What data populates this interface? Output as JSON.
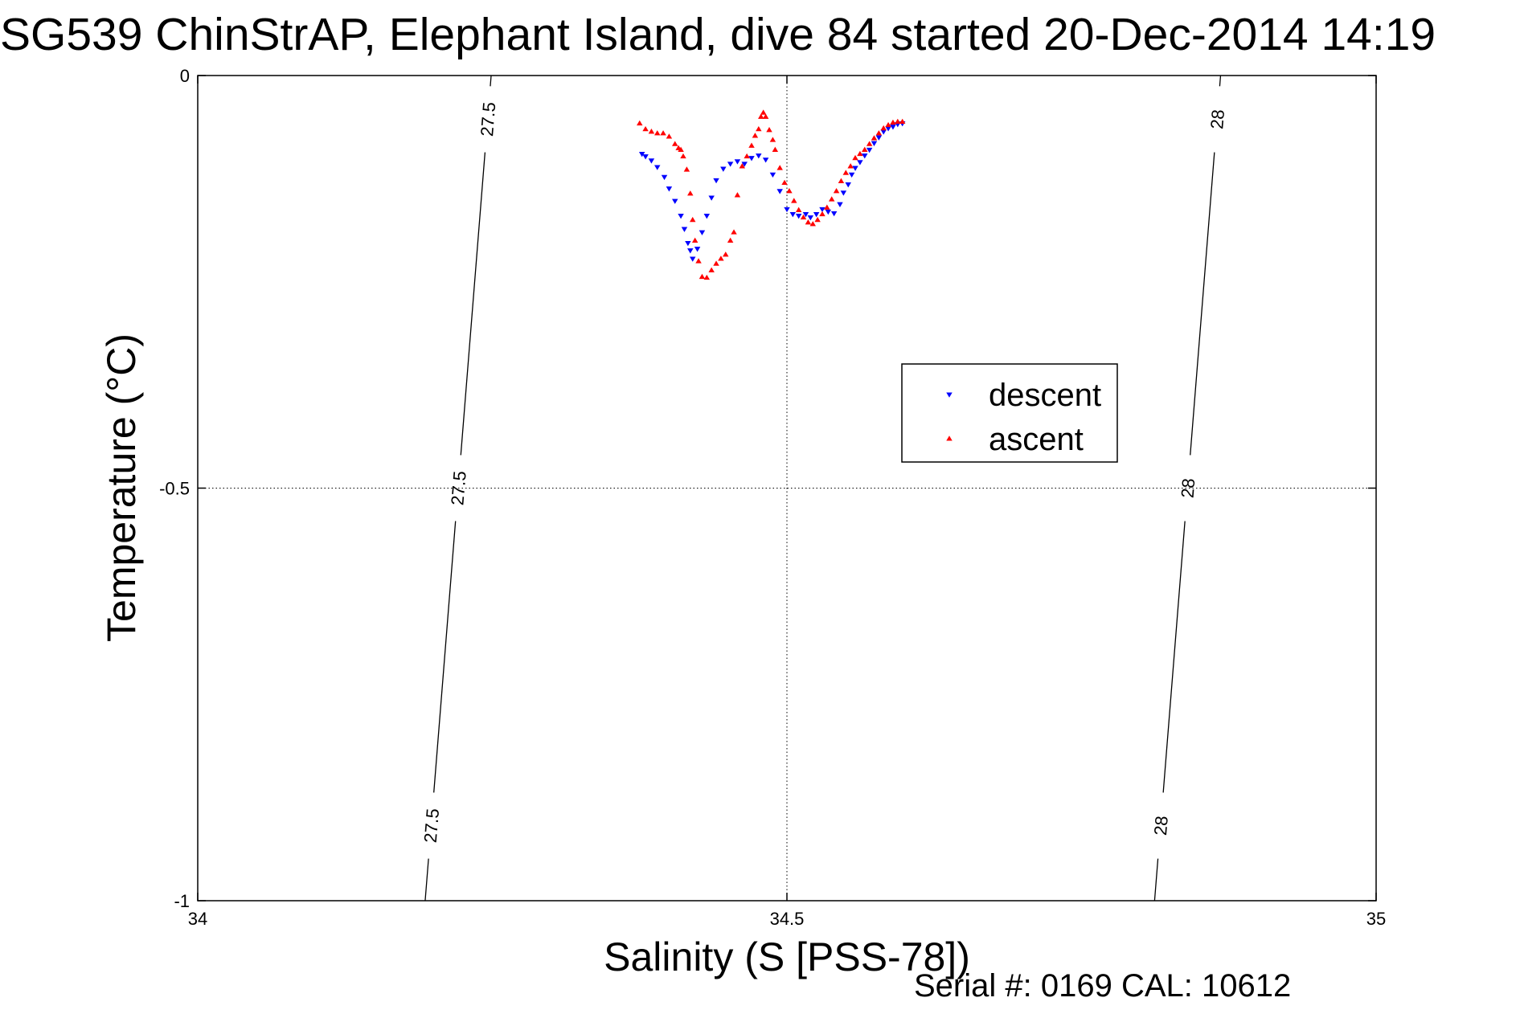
{
  "chart_data": {
    "type": "scatter",
    "title": "SG539 ChinStrAP, Elephant Island, dive 84 started 20-Dec-2014 14:19",
    "xlabel": "Salinity (S [PSS-78])",
    "ylabel": "Temperature (°C)",
    "xlim": [
      34,
      35
    ],
    "ylim": [
      -1,
      0
    ],
    "x_ticks": [
      "34",
      "34.5",
      "35"
    ],
    "y_ticks": [
      "0",
      "-0.5",
      "-1"
    ],
    "grid": true,
    "legend_placement": "center-right",
    "footer": "Serial #: 0169 CAL: 10612",
    "density_contours": [
      {
        "level": "27.5",
        "labels": [
          "27.5",
          "27.5",
          "27.5"
        ],
        "points": [
          [
            34.249,
            0.0
          ],
          [
            34.193,
            -1.0
          ]
        ]
      },
      {
        "level": "28",
        "labels": [
          "28",
          "28",
          "28"
        ],
        "points": [
          [
            34.868,
            0.0
          ],
          [
            34.812,
            -1.0
          ]
        ]
      }
    ],
    "series": [
      {
        "name": "descent",
        "color": "#0000ff",
        "marker": "triangle-down",
        "x": [
          34.377,
          34.38,
          34.385,
          34.39,
          34.396,
          34.4,
          34.405,
          34.41,
          34.413,
          34.416,
          34.418,
          34.42,
          34.424,
          34.428,
          34.432,
          34.436,
          34.44,
          34.446,
          34.452,
          34.458,
          34.464,
          34.47,
          34.476,
          34.482,
          34.488,
          34.494,
          34.5,
          34.505,
          34.51,
          34.516,
          34.52,
          34.525,
          34.53,
          34.535,
          34.54,
          34.545,
          34.548,
          34.552,
          34.555,
          34.558,
          34.562,
          34.566,
          34.57,
          34.574,
          34.578,
          34.582,
          34.586,
          34.59,
          34.594,
          34.598
        ],
        "y": [
          -0.095,
          -0.098,
          -0.103,
          -0.111,
          -0.123,
          -0.137,
          -0.152,
          -0.17,
          -0.186,
          -0.203,
          -0.212,
          -0.222,
          -0.21,
          -0.19,
          -0.17,
          -0.148,
          -0.127,
          -0.113,
          -0.107,
          -0.104,
          -0.107,
          -0.1,
          -0.097,
          -0.102,
          -0.12,
          -0.14,
          -0.162,
          -0.168,
          -0.17,
          -0.168,
          -0.172,
          -0.168,
          -0.162,
          -0.165,
          -0.167,
          -0.156,
          -0.142,
          -0.132,
          -0.12,
          -0.112,
          -0.105,
          -0.097,
          -0.09,
          -0.082,
          -0.075,
          -0.068,
          -0.064,
          -0.062,
          -0.059,
          -0.058
        ]
      },
      {
        "name": "ascent",
        "color": "#ff0000",
        "marker": "triangle-up",
        "x": [
          34.375,
          34.38,
          34.385,
          34.39,
          34.395,
          34.4,
          34.405,
          34.408,
          34.41,
          34.412,
          34.415,
          34.418,
          34.42,
          34.422,
          34.425,
          34.428,
          34.432,
          34.436,
          34.44,
          34.444,
          34.448,
          34.452,
          34.455,
          34.458,
          34.462,
          34.466,
          34.47,
          34.473,
          34.476,
          34.478,
          34.48,
          34.482,
          34.485,
          34.488,
          34.49,
          34.494,
          34.498,
          34.502,
          34.506,
          34.51,
          34.514,
          34.518,
          34.522,
          34.526,
          34.53,
          34.534,
          34.538,
          34.542,
          34.546,
          34.55,
          34.554,
          34.558,
          34.562,
          34.566,
          34.57,
          34.574,
          34.578,
          34.582,
          34.586,
          34.59,
          34.594,
          34.598
        ],
        "y": [
          -0.058,
          -0.065,
          -0.068,
          -0.07,
          -0.07,
          -0.074,
          -0.083,
          -0.088,
          -0.09,
          -0.098,
          -0.114,
          -0.143,
          -0.175,
          -0.2,
          -0.225,
          -0.244,
          -0.245,
          -0.236,
          -0.228,
          -0.222,
          -0.217,
          -0.2,
          -0.19,
          -0.145,
          -0.11,
          -0.098,
          -0.085,
          -0.073,
          -0.065,
          -0.05,
          -0.045,
          -0.05,
          -0.066,
          -0.078,
          -0.09,
          -0.112,
          -0.13,
          -0.14,
          -0.152,
          -0.163,
          -0.172,
          -0.178,
          -0.18,
          -0.175,
          -0.168,
          -0.16,
          -0.15,
          -0.14,
          -0.128,
          -0.118,
          -0.11,
          -0.1,
          -0.095,
          -0.09,
          -0.083,
          -0.076,
          -0.07,
          -0.064,
          -0.06,
          -0.057,
          -0.056,
          -0.056
        ]
      }
    ]
  }
}
